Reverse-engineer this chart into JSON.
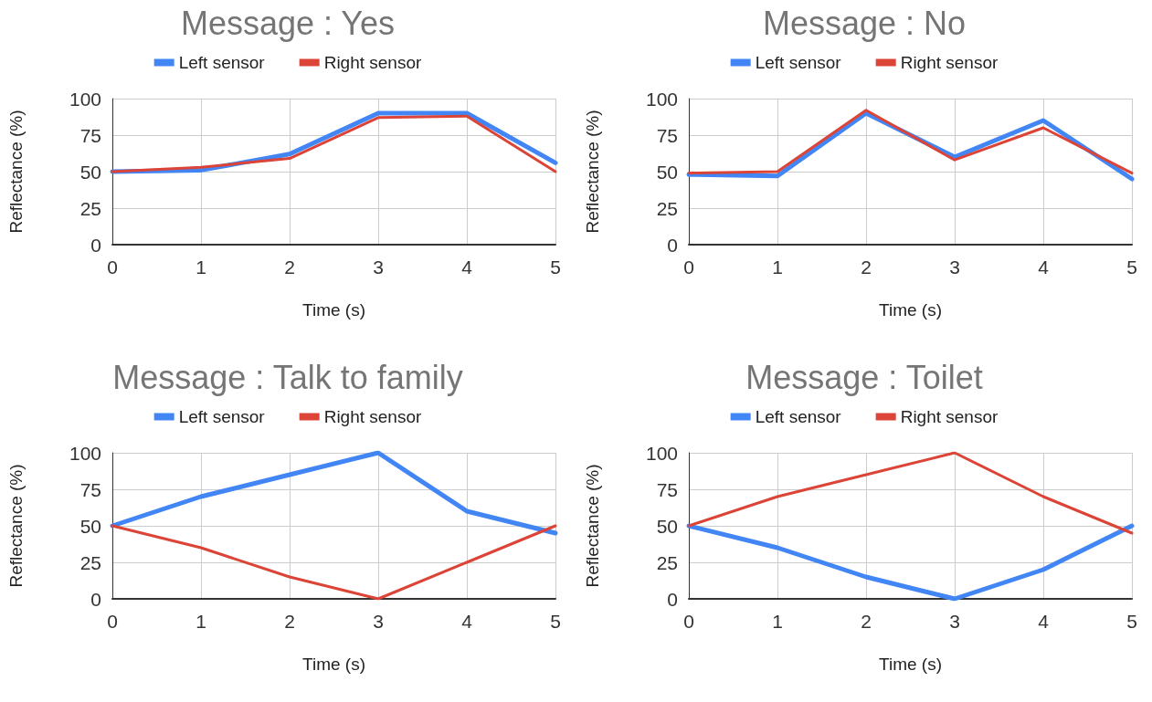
{
  "chart_data": [
    {
      "type": "line",
      "title": "Message : Yes",
      "xlabel": "Time (s)",
      "ylabel": "Reflectance (%)",
      "x": [
        0,
        1,
        2,
        3,
        4,
        5
      ],
      "xlim": [
        0,
        5
      ],
      "xticks": [
        0,
        1,
        2,
        3,
        4,
        5
      ],
      "ylim": [
        0,
        100
      ],
      "yticks": [
        0,
        25,
        50,
        75,
        100
      ],
      "grid": true,
      "legend": "top",
      "marker": "none",
      "series": [
        {
          "name": "Left sensor",
          "color": "#4285f4",
          "values": [
            50,
            51,
            62,
            90,
            90,
            56
          ]
        },
        {
          "name": "Right sensor",
          "color": "#db4437",
          "values": [
            50,
            53,
            59,
            87,
            88,
            50
          ]
        }
      ]
    },
    {
      "type": "line",
      "title": "Message : No",
      "xlabel": "Time (s)",
      "ylabel": "Reflectance (%)",
      "x": [
        0,
        1,
        2,
        3,
        4,
        5
      ],
      "xlim": [
        0,
        5
      ],
      "xticks": [
        0,
        1,
        2,
        3,
        4,
        5
      ],
      "ylim": [
        0,
        100
      ],
      "yticks": [
        0,
        25,
        50,
        75,
        100
      ],
      "grid": true,
      "legend": "top",
      "marker": "none",
      "series": [
        {
          "name": "Left sensor",
          "color": "#4285f4",
          "values": [
            48,
            47,
            90,
            60,
            85,
            45
          ]
        },
        {
          "name": "Right sensor",
          "color": "#db4437",
          "values": [
            49,
            50,
            92,
            58,
            80,
            49
          ]
        }
      ]
    },
    {
      "type": "line",
      "title": "Message : Talk to family",
      "xlabel": "Time (s)",
      "ylabel": "Reflectance (%)",
      "x": [
        0,
        1,
        2,
        3,
        4,
        5
      ],
      "xlim": [
        0,
        5
      ],
      "xticks": [
        0,
        1,
        2,
        3,
        4,
        5
      ],
      "ylim": [
        0,
        100
      ],
      "yticks": [
        0,
        25,
        50,
        75,
        100
      ],
      "grid": true,
      "legend": "top",
      "marker": "none",
      "series": [
        {
          "name": "Left sensor",
          "color": "#4285f4",
          "values": [
            50,
            70,
            85,
            100,
            60,
            45
          ]
        },
        {
          "name": "Right sensor",
          "color": "#db4437",
          "values": [
            50,
            35,
            15,
            0,
            25,
            50
          ]
        }
      ]
    },
    {
      "type": "line",
      "title": "Message : Toilet",
      "xlabel": "Time (s)",
      "ylabel": "Reflectance (%)",
      "x": [
        0,
        1,
        2,
        3,
        4,
        5
      ],
      "xlim": [
        0,
        5
      ],
      "xticks": [
        0,
        1,
        2,
        3,
        4,
        5
      ],
      "ylim": [
        0,
        100
      ],
      "yticks": [
        0,
        25,
        50,
        75,
        100
      ],
      "grid": true,
      "legend": "top",
      "marker": "none",
      "series": [
        {
          "name": "Left sensor",
          "color": "#4285f4",
          "values": [
            50,
            35,
            15,
            0,
            20,
            50
          ]
        },
        {
          "name": "Right sensor",
          "color": "#db4437",
          "values": [
            50,
            70,
            85,
            100,
            70,
            45
          ]
        }
      ]
    }
  ]
}
